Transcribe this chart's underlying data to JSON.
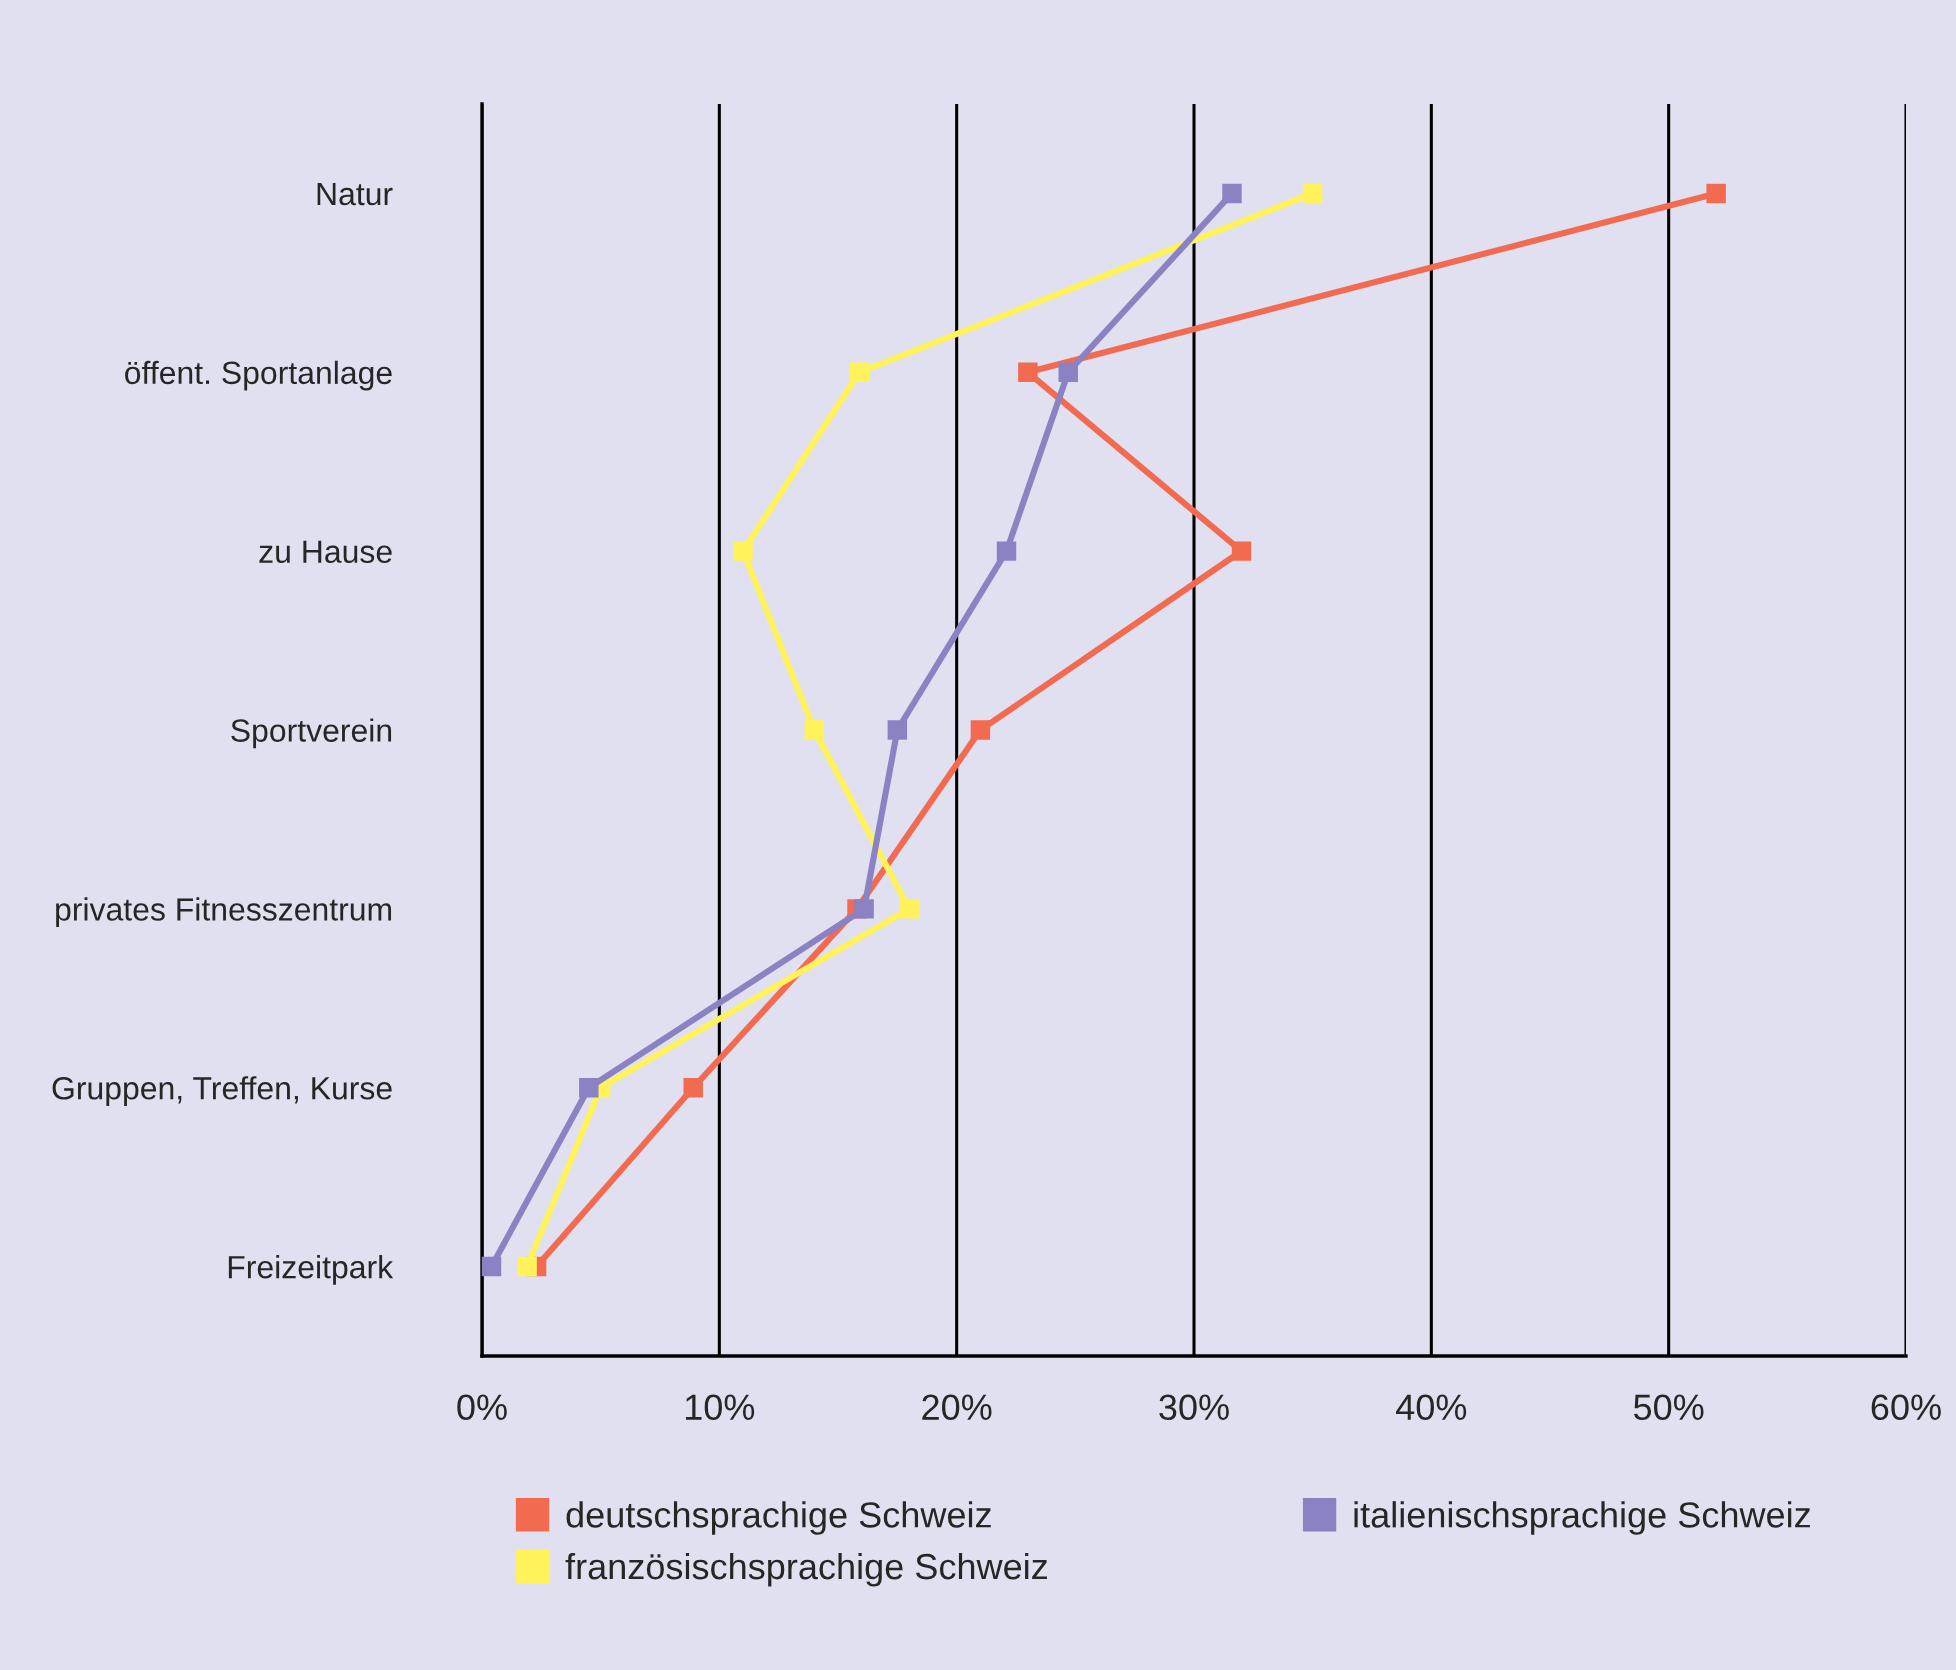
{
  "chart_data": {
    "type": "line",
    "orientation": "horizontal",
    "categories": [
      "Natur",
      "öffent. Sportanlage",
      "zu Hause",
      "Sportverein",
      "privates Fitnesszentrum",
      "Gruppen, Treffen, Kurse",
      "Freizeitpark"
    ],
    "series": [
      {
        "name": "deutschsprachige Schweiz",
        "color": "#f26b50",
        "values": [
          52.0,
          23.0,
          32.0,
          21.0,
          15.8,
          8.9,
          2.3
        ]
      },
      {
        "name": "französischsprachige Schweiz",
        "color": "#fff25a",
        "values": [
          35.0,
          15.9,
          11.0,
          14.0,
          18.0,
          5.0,
          1.9
        ]
      },
      {
        "name": "italienischsprachige Schweiz",
        "color": "#8a82c2",
        "values": [
          31.6,
          24.7,
          22.1,
          17.5,
          16.1,
          4.5,
          0.4
        ]
      }
    ],
    "xlim": [
      0,
      60
    ],
    "xticks": [
      {
        "value": 0,
        "label": "0%"
      },
      {
        "value": 10,
        "label": "10%"
      },
      {
        "value": 20,
        "label": "20%"
      },
      {
        "value": 30,
        "label": "30%"
      },
      {
        "value": 40,
        "label": "40%"
      },
      {
        "value": 50,
        "label": "50%"
      },
      {
        "value": 60,
        "label": "60%"
      }
    ],
    "grid": "x",
    "legend": "bottom",
    "marker": "square",
    "line_style": "solid"
  }
}
